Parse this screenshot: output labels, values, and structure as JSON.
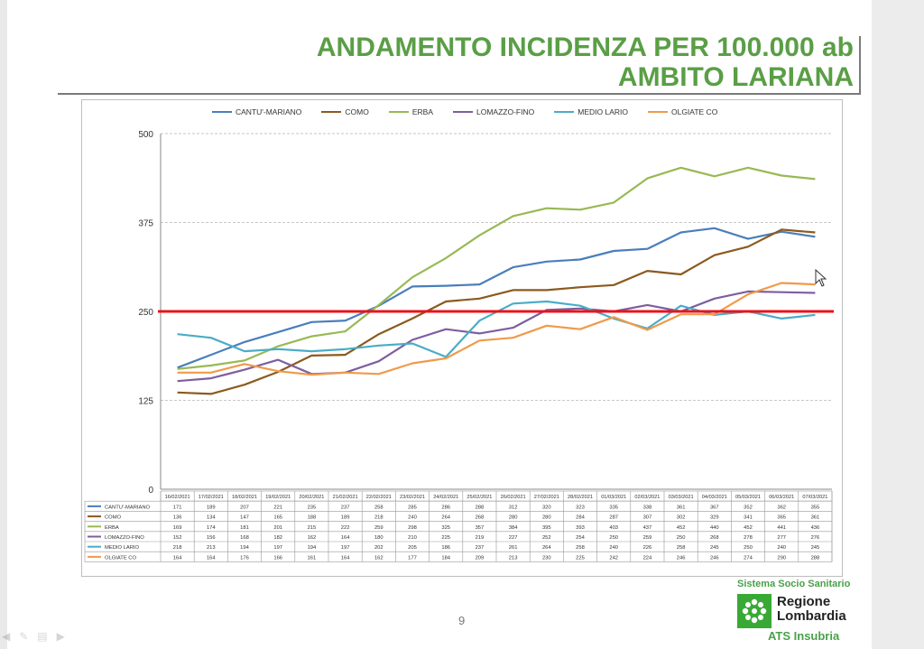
{
  "slide": {
    "title_line1": "ANDAMENTO INCIDENZA PER 100.000 ab",
    "title_line2": "AMBITO LARIANA",
    "page_number": "9"
  },
  "logo": {
    "subtitle": "Sistema Socio Sanitario",
    "name_line1": "Regione",
    "name_line2": "Lombardia",
    "unit": "ATS Insubria"
  },
  "colors": {
    "title_green": "#5a9e46",
    "threshold_red": "#e8141b"
  },
  "chart_data": {
    "type": "line",
    "title": "",
    "xlabel": "",
    "ylabel": "",
    "ylim": [
      0,
      500
    ],
    "yticks": [
      0,
      125,
      250,
      375,
      500
    ],
    "grid": "horizontal dashed",
    "legend_position": "top",
    "threshold": 250,
    "categories": [
      "16/02/2021",
      "17/02/2021",
      "18/02/2021",
      "19/02/2021",
      "20/02/2021",
      "21/02/2021",
      "22/02/2021",
      "23/02/2021",
      "24/02/2021",
      "25/02/2021",
      "26/02/2021",
      "27/02/2021",
      "28/02/2021",
      "01/03/2021",
      "02/03/2021",
      "03/03/2021",
      "04/03/2021",
      "05/03/2021",
      "06/03/2021",
      "07/03/2021"
    ],
    "series": [
      {
        "name": "CANTU'-MARIANO",
        "color": "#4a7ebb",
        "values": [
          171,
          189,
          207,
          221,
          235,
          237,
          258,
          285,
          286,
          288,
          312,
          320,
          323,
          335,
          338,
          361,
          367,
          352,
          362,
          355
        ]
      },
      {
        "name": "COMO",
        "color": "#8b5a1e",
        "values": [
          136,
          134,
          147,
          165,
          188,
          189,
          218,
          240,
          264,
          268,
          280,
          280,
          284,
          287,
          307,
          302,
          329,
          341,
          365,
          361
        ]
      },
      {
        "name": "ERBA",
        "color": "#98b954",
        "values": [
          169,
          174,
          181,
          201,
          215,
          222,
          259,
          298,
          325,
          357,
          384,
          395,
          393,
          403,
          437,
          452,
          440,
          452,
          441,
          436
        ]
      },
      {
        "name": "LOMAZZO-FINO",
        "color": "#7d5fa0",
        "values": [
          152,
          156,
          168,
          182,
          162,
          164,
          180,
          210,
          225,
          219,
          227,
          252,
          254,
          250,
          259,
          250,
          268,
          278,
          277,
          276
        ]
      },
      {
        "name": "MEDIO LARIO",
        "color": "#4bacc6",
        "values": [
          218,
          213,
          194,
          197,
          194,
          197,
          202,
          205,
          186,
          237,
          261,
          264,
          258,
          240,
          226,
          258,
          245,
          250,
          240,
          245
        ]
      },
      {
        "name": "OLGIATE CO",
        "color": "#f09a4a",
        "values": [
          164,
          164,
          176,
          166,
          161,
          164,
          162,
          177,
          184,
          209,
          213,
          230,
          225,
          242,
          224,
          246,
          246,
          274,
          290,
          288
        ]
      }
    ]
  }
}
